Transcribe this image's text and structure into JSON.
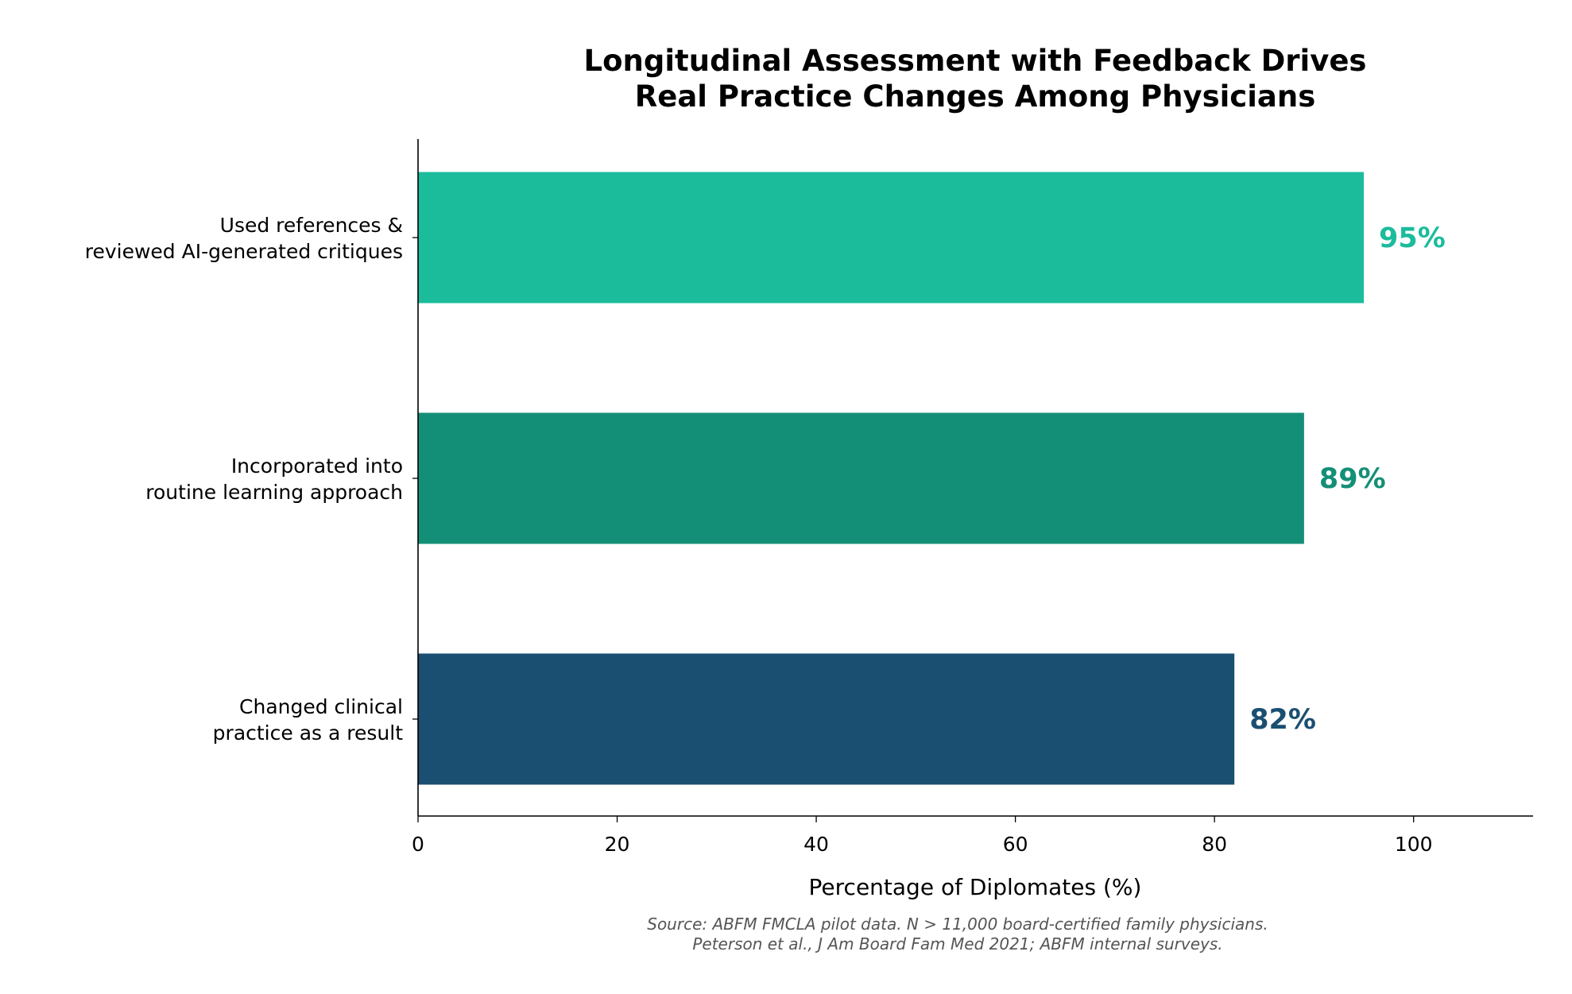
{
  "chart_data": {
    "type": "bar",
    "orientation": "horizontal",
    "title": [
      "Longitudinal Assessment with Feedback Drives",
      "Real Practice Changes Among Physicians"
    ],
    "xlabel": "Percentage of Diplomates (%)",
    "ylabel": "",
    "xlim": [
      0,
      112
    ],
    "xticks": [
      "0",
      "20",
      "40",
      "60",
      "80",
      "100"
    ],
    "grid": false,
    "categories": [
      [
        "Used references &",
        "reviewed AI-generated critiques"
      ],
      [
        "Incorporated into",
        "routine learning approach"
      ],
      [
        "Changed clinical",
        "practice as a result"
      ]
    ],
    "values": [
      95,
      89,
      82
    ],
    "data_labels": [
      "95%",
      "89%",
      "82%"
    ],
    "colors": [
      "#1abc9c",
      "#148f77",
      "#1b4f72"
    ],
    "footnote": [
      "Source: ABFM FMCLA pilot data. N > 11,000 board-certified family physicians.",
      "Peterson et al., J Am Board Fam Med 2021; ABFM internal surveys."
    ]
  }
}
